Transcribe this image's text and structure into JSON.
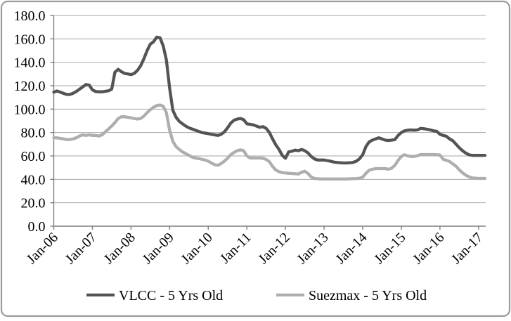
{
  "frame": {
    "background": "#ffffff",
    "border_color": "#9b9b9b"
  },
  "chart_data": {
    "type": "line",
    "title": "",
    "xlabel": "",
    "ylabel": "",
    "ylim": [
      0,
      180
    ],
    "grid": "horizontal",
    "legend_position": "bottom",
    "colors": {
      "gridline": "#a6a6a6",
      "axis": "#7f7f7f",
      "tick_text": "#000000"
    },
    "y_ticks": [
      {
        "value": 0,
        "label": "0.0"
      },
      {
        "value": 20,
        "label": "20.0"
      },
      {
        "value": 40,
        "label": "40.0"
      },
      {
        "value": 60,
        "label": "60.0"
      },
      {
        "value": 80,
        "label": "80.0"
      },
      {
        "value": 100,
        "label": "100.0"
      },
      {
        "value": 120,
        "label": "120.0"
      },
      {
        "value": 140,
        "label": "140.0"
      },
      {
        "value": 160,
        "label": "160.0"
      },
      {
        "value": 180,
        "label": "180.0"
      }
    ],
    "x_ticks": [
      {
        "index": 0,
        "label": "Jan-06"
      },
      {
        "index": 12,
        "label": "Jan-07"
      },
      {
        "index": 24,
        "label": "Jan-08"
      },
      {
        "index": 36,
        "label": "Jan-09"
      },
      {
        "index": 48,
        "label": "Jan-10"
      },
      {
        "index": 60,
        "label": "Jan-11"
      },
      {
        "index": 72,
        "label": "Jan-12"
      },
      {
        "index": 84,
        "label": "Jan-13"
      },
      {
        "index": 96,
        "label": "Jan-14"
      },
      {
        "index": 108,
        "label": "Jan-15"
      },
      {
        "index": 120,
        "label": "Jan-16"
      },
      {
        "index": 132,
        "label": "Jan-17"
      }
    ],
    "x_unit": "month",
    "series": [
      {
        "name": "VLCC - 5 Yrs Old",
        "color": "#545454",
        "values": [
          114.5,
          115.5,
          114.5,
          113.5,
          112.5,
          112.5,
          113.5,
          115,
          117,
          119,
          121,
          120.5,
          116.5,
          115,
          114.8,
          114.8,
          115.2,
          115.6,
          117,
          131.5,
          134,
          132,
          130.5,
          130,
          129.5,
          130.5,
          133,
          137,
          143,
          150,
          155.5,
          157.5,
          161.5,
          161,
          154,
          142,
          118,
          99,
          93,
          89.5,
          87.5,
          85.5,
          84,
          83,
          82,
          81,
          80,
          79.5,
          79,
          78.5,
          78,
          77.5,
          78.5,
          80.5,
          84,
          88,
          90.5,
          91.5,
          92,
          91,
          87.5,
          87,
          86.5,
          85.5,
          84.5,
          85,
          83.5,
          80,
          74.5,
          69.5,
          65.5,
          60.5,
          58,
          63.5,
          64,
          65,
          64.5,
          65.5,
          64.5,
          62.5,
          59.5,
          57.5,
          56.5,
          56.5,
          56.5,
          56,
          55.5,
          54.8,
          54.5,
          54.2,
          54,
          54,
          54.2,
          54.5,
          55.5,
          57.5,
          61,
          68,
          72,
          73.5,
          74.5,
          75.5,
          74.5,
          73.5,
          73.2,
          73.5,
          74,
          77.5,
          80,
          81.5,
          82,
          82.2,
          82,
          82.2,
          83.5,
          83.2,
          82.8,
          82.2,
          81.5,
          81,
          78.5,
          77.5,
          76.8,
          74.5,
          73,
          70,
          67,
          64.5,
          62.5,
          61,
          60.5,
          60.5,
          60.5,
          60.5,
          60.5
        ]
      },
      {
        "name": "Suezmax - 5 Yrs Old",
        "color": "#aeaeae",
        "values": [
          75.5,
          75.5,
          75,
          74.5,
          74,
          74,
          74.5,
          75.5,
          77,
          78,
          77.5,
          78,
          77.5,
          77.5,
          77,
          78,
          80.5,
          83,
          85.5,
          88.5,
          92,
          93.5,
          93.5,
          93,
          92.5,
          92,
          91.5,
          92,
          94,
          97,
          99.5,
          101.5,
          103,
          103.5,
          102.5,
          97,
          82,
          72.5,
          68,
          65.5,
          63.5,
          62,
          60.5,
          59,
          58.2,
          57.8,
          57.2,
          56.5,
          55.5,
          54,
          52.5,
          52,
          53.5,
          55.5,
          58,
          61,
          63,
          64.5,
          65.2,
          64.5,
          60,
          58.2,
          58.2,
          58.2,
          58.2,
          58,
          57,
          55,
          51,
          48,
          46.5,
          45.8,
          45.5,
          45.2,
          45,
          44.8,
          44.5,
          46,
          47,
          45,
          42,
          40.8,
          40.5,
          40.3,
          40.3,
          40.3,
          40.3,
          40.3,
          40.3,
          40.3,
          40.3,
          40.3,
          40.5,
          40.6,
          40.6,
          41,
          41.8,
          45.2,
          47.8,
          48.6,
          49.2,
          49.2,
          49.2,
          49.2,
          48.6,
          49.5,
          52,
          56.2,
          59.5,
          61,
          60,
          59.6,
          59.6,
          60.2,
          61.2,
          61.2,
          61.2,
          61.2,
          61.2,
          61,
          60.8,
          57.2,
          56.2,
          55.2,
          53.2,
          51.2,
          48.2,
          45.6,
          43.6,
          42.2,
          41.2,
          41,
          40.8,
          40.8,
          40.8
        ]
      }
    ]
  }
}
